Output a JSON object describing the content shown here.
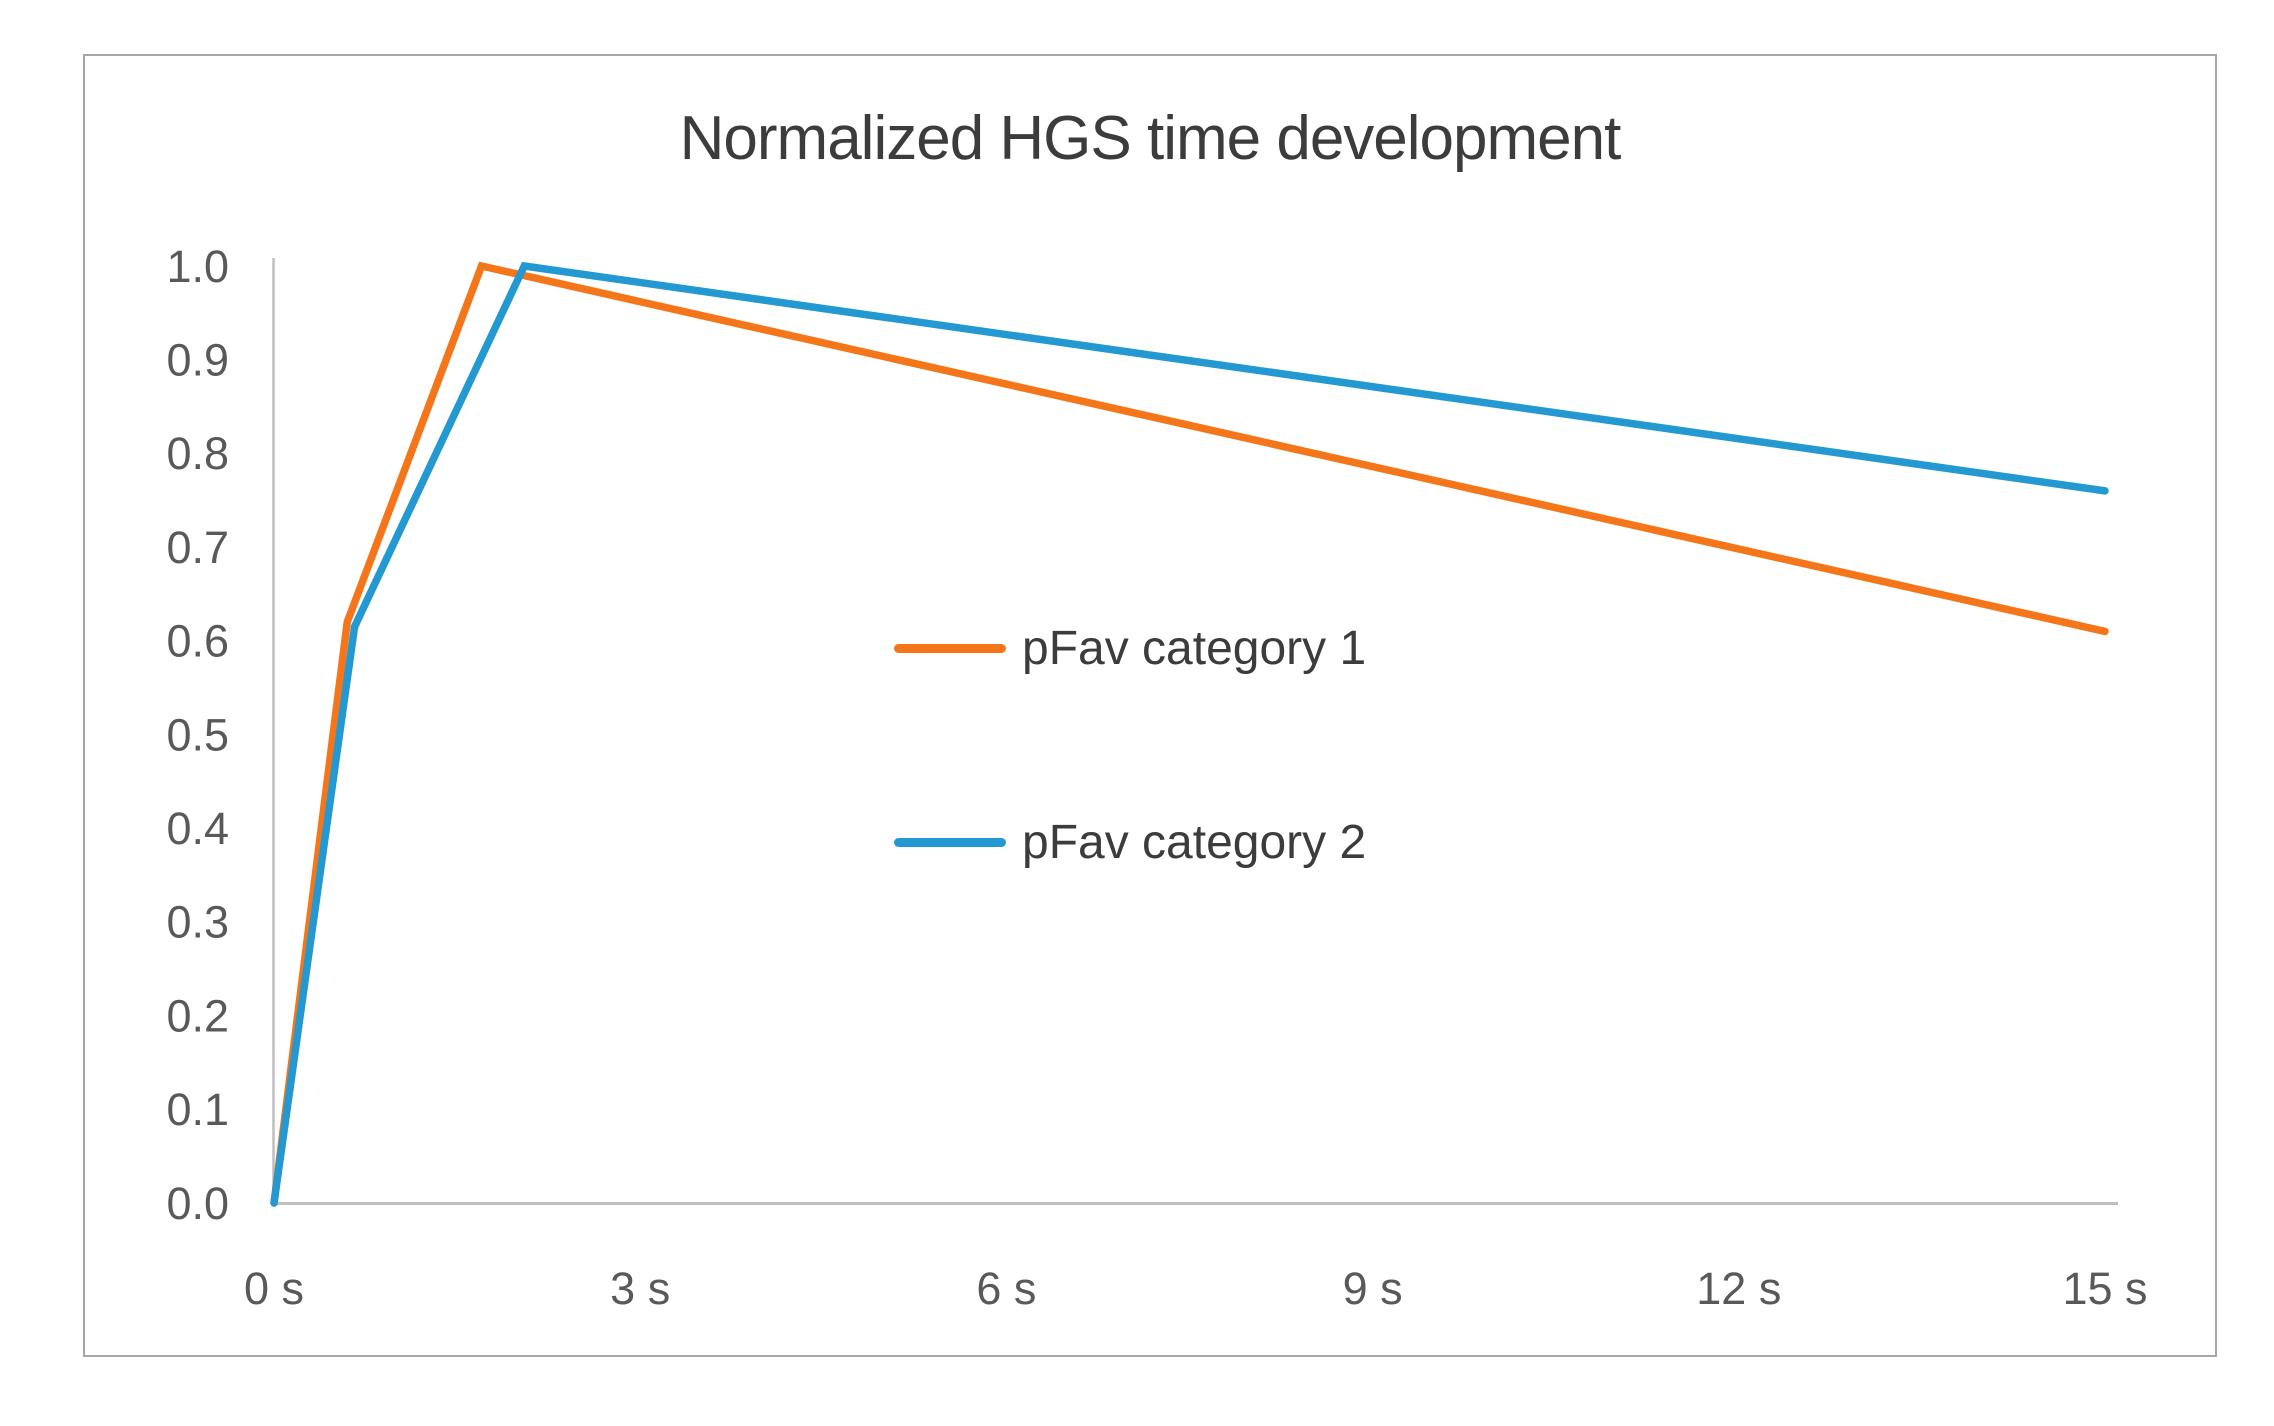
{
  "page": {
    "background": "#FFFFFF"
  },
  "chart_frame": {
    "border_color": "#A6A6A6",
    "background": "#FFFFFF"
  },
  "colors": {
    "title_text": "#3C3C3C",
    "axis_line": "#BFBFBF",
    "tick_label": "#595959",
    "legend_text": "#3C3C3C",
    "series_orange": "#F5761A",
    "series_blue": "#2499D1"
  },
  "chart_data": {
    "type": "line",
    "title": "Normalized HGS time development",
    "xlabel": "",
    "ylabel": "",
    "x_unit": "s",
    "xlim": [
      0,
      15
    ],
    "ylim": [
      0.0,
      1.0
    ],
    "grid": false,
    "legend_position": "inside-center-left",
    "x_ticks": [
      {
        "value": 0,
        "label": "0 s"
      },
      {
        "value": 3,
        "label": "3 s"
      },
      {
        "value": 6,
        "label": "6 s"
      },
      {
        "value": 9,
        "label": "9 s"
      },
      {
        "value": 12,
        "label": "12 s"
      },
      {
        "value": 15,
        "label": "15 s"
      }
    ],
    "y_ticks": [
      {
        "value": 0.0,
        "label": "0.0"
      },
      {
        "value": 0.1,
        "label": "0.1"
      },
      {
        "value": 0.2,
        "label": "0.2"
      },
      {
        "value": 0.3,
        "label": "0.3"
      },
      {
        "value": 0.4,
        "label": "0.4"
      },
      {
        "value": 0.5,
        "label": "0.5"
      },
      {
        "value": 0.6,
        "label": "0.6"
      },
      {
        "value": 0.7,
        "label": "0.7"
      },
      {
        "value": 0.8,
        "label": "0.8"
      },
      {
        "value": 0.9,
        "label": "0.9"
      },
      {
        "value": 1.0,
        "label": "1.0"
      }
    ],
    "series": [
      {
        "name": "pFav category 1",
        "color": "#F5761A",
        "points": [
          [
            0,
            0.0
          ],
          [
            0.6,
            0.62
          ],
          [
            1.7,
            1.0
          ],
          [
            15,
            0.61
          ]
        ]
      },
      {
        "name": "pFav category 2",
        "color": "#2499D1",
        "points": [
          [
            0,
            0.0
          ],
          [
            0.66,
            0.615
          ],
          [
            2.05,
            1.0
          ],
          [
            15,
            0.76
          ]
        ]
      }
    ]
  }
}
